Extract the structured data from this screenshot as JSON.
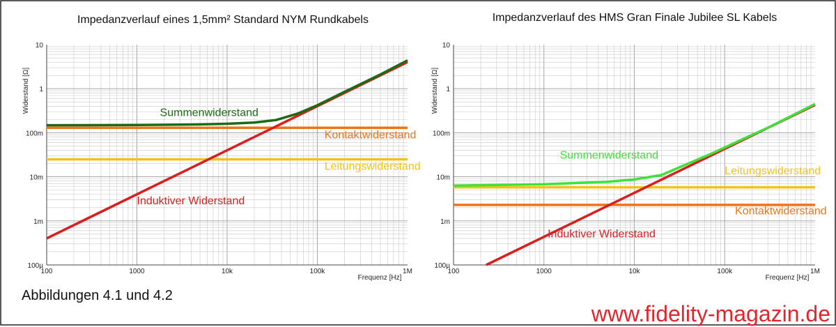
{
  "caption": "Abbildungen 4.1 und 4.2",
  "watermark": "www.fidelity-magazin.de",
  "colors": {
    "summe_left": "#1b6a14",
    "summe_right": "#3ee23a",
    "kontakt": "#ec7419",
    "leitung": "#f3c21a",
    "induktiv": "#dc1d1d",
    "grid": "#c8c8c8",
    "border": "#222222"
  },
  "chart_data": [
    {
      "type": "line",
      "title": "Impedanzverlauf eines 1,5mm² Standard NYM Rundkabels",
      "xlabel": "Frequenz [Hz]",
      "ylabel": "Widerstand [Ω]",
      "xscale": "log",
      "yscale": "log",
      "xlim": [
        100,
        1000000
      ],
      "ylim": [
        0.0001,
        10
      ],
      "grid": true,
      "x_ticks": [
        {
          "v": 100,
          "label": "100"
        },
        {
          "v": 1000,
          "label": "1000"
        },
        {
          "v": 10000,
          "label": "10k"
        },
        {
          "v": 100000,
          "label": "100k"
        },
        {
          "v": 1000000,
          "label": "1M"
        }
      ],
      "y_ticks": [
        {
          "v": 0.0001,
          "label": "100µ"
        },
        {
          "v": 0.001,
          "label": "1m"
        },
        {
          "v": 0.01,
          "label": "10m"
        },
        {
          "v": 0.1,
          "label": "100m"
        },
        {
          "v": 1,
          "label": "1"
        },
        {
          "v": 10,
          "label": "10"
        }
      ],
      "series": [
        {
          "name": "Leitungswiderstand",
          "color_key": "leitung",
          "x": [
            100,
            1000000
          ],
          "y": [
            0.025,
            0.025
          ]
        },
        {
          "name": "Kontaktwiderstand",
          "color_key": "kontakt",
          "x": [
            100,
            1000000
          ],
          "y": [
            0.13,
            0.13
          ]
        },
        {
          "name": "Induktiver Widerstand",
          "color_key": "induktiv",
          "x": [
            100,
            1000000
          ],
          "y": [
            0.0004,
            4.0
          ]
        },
        {
          "name": "Summenwiderstand",
          "color_key": "summe_left",
          "x": [
            100,
            1000,
            5000,
            10000,
            20000,
            35000,
            60000,
            100000,
            200000,
            500000,
            1000000
          ],
          "y": [
            0.148,
            0.15,
            0.155,
            0.16,
            0.17,
            0.195,
            0.27,
            0.42,
            0.85,
            2.1,
            4.4
          ]
        }
      ],
      "labels": [
        {
          "text": "Summenwiderstand",
          "color_key": "summe_left",
          "x": 1800,
          "y": 0.24
        },
        {
          "text": "Kontaktwiderstand",
          "color_key": "kontakt",
          "x": 120000,
          "y": 0.075
        },
        {
          "text": "Leitungswiderstand",
          "color_key": "leitung",
          "x": 120000,
          "y": 0.0145
        },
        {
          "text": "Induktiver Widerstand",
          "color_key": "induktiv",
          "x": 1000,
          "y": 0.0024
        }
      ]
    },
    {
      "type": "line",
      "title": "Impedanzverlauf des HMS Gran Finale Jubilee SL Kabels",
      "xlabel": "Frequenz [Hz]",
      "ylabel": "Widerstand [Ω]",
      "xscale": "log",
      "yscale": "log",
      "xlim": [
        100,
        1000000
      ],
      "ylim": [
        0.0001,
        10
      ],
      "grid": true,
      "x_ticks": [
        {
          "v": 100,
          "label": "100"
        },
        {
          "v": 1000,
          "label": "1000"
        },
        {
          "v": 10000,
          "label": "10k"
        },
        {
          "v": 100000,
          "label": "100k"
        },
        {
          "v": 1000000,
          "label": "1M"
        }
      ],
      "y_ticks": [
        {
          "v": 0.0001,
          "label": "100µ"
        },
        {
          "v": 0.001,
          "label": "1m"
        },
        {
          "v": 0.01,
          "label": "10m"
        },
        {
          "v": 0.1,
          "label": "100m"
        },
        {
          "v": 1,
          "label": "1"
        },
        {
          "v": 10,
          "label": "10"
        }
      ],
      "series": [
        {
          "name": "Leitungswiderstand",
          "color_key": "leitung",
          "x": [
            100,
            1000000
          ],
          "y": [
            0.0058,
            0.0058
          ]
        },
        {
          "name": "Kontaktwiderstand",
          "color_key": "kontakt",
          "x": [
            100,
            1000000
          ],
          "y": [
            0.0023,
            0.0023
          ]
        },
        {
          "name": "Induktiver Widerstand",
          "color_key": "induktiv",
          "x": [
            230,
            1000000
          ],
          "y": [
            0.0001,
            0.43
          ]
        },
        {
          "name": "Summenwiderstand",
          "color_key": "summe_right",
          "x": [
            100,
            1000,
            5000,
            10000,
            20000,
            35000,
            70000,
            150000,
            300000,
            1000000
          ],
          "y": [
            0.0063,
            0.0068,
            0.0077,
            0.0087,
            0.011,
            0.018,
            0.033,
            0.068,
            0.13,
            0.45
          ]
        }
      ],
      "labels": [
        {
          "text": "Summenwiderstand",
          "color_key": "summe_right",
          "x": 1500,
          "y": 0.026
        },
        {
          "text": "Leitungswiderstand",
          "color_key": "leitung",
          "x": 100000,
          "y": 0.0113
        },
        {
          "text": "Kontaktwiderstand",
          "color_key": "kontakt",
          "x": 130000,
          "y": 0.0014
        },
        {
          "text": "Induktiver Widerstand",
          "color_key": "induktiv",
          "x": 1100,
          "y": 0.00042
        }
      ]
    }
  ]
}
